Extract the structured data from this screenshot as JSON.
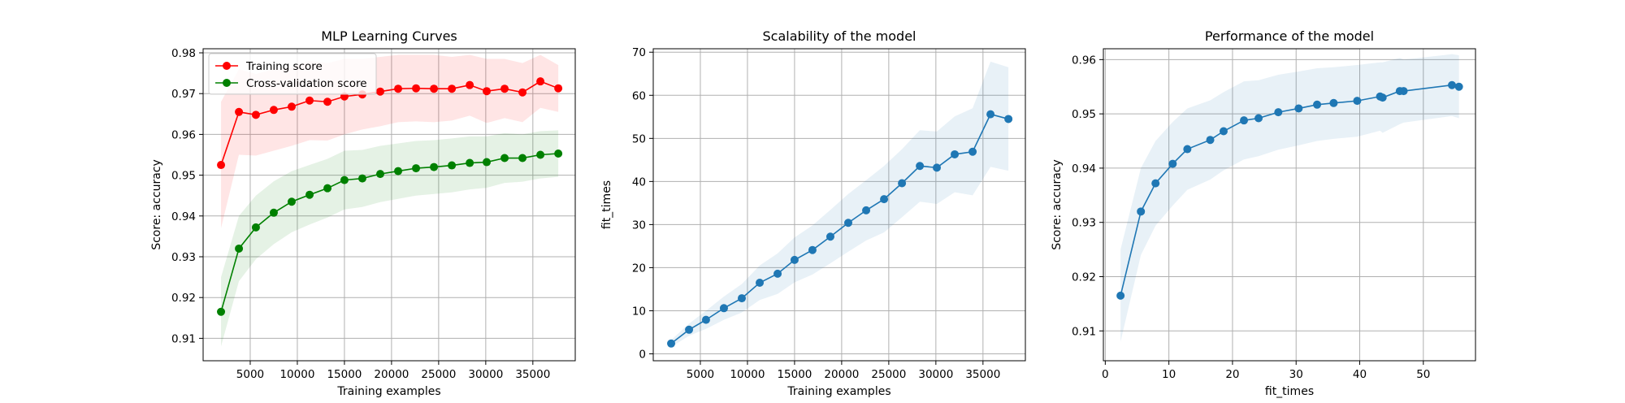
{
  "chart_data": [
    {
      "type": "line",
      "title": "MLP Learning Curves",
      "xlabel": "Training examples",
      "ylabel": "Score: accuracy",
      "xlim": [
        0,
        39500
      ],
      "ylim": [
        0.9045,
        0.981
      ],
      "xticks": [
        5000,
        10000,
        15000,
        20000,
        25000,
        30000,
        35000
      ],
      "yticks": [
        0.91,
        0.92,
        0.93,
        0.94,
        0.95,
        0.96,
        0.97,
        0.98
      ],
      "grid": true,
      "legend": "top-left",
      "x": [
        1900,
        3800,
        5600,
        7500,
        9400,
        11300,
        13200,
        15000,
        16900,
        18800,
        20700,
        22600,
        24500,
        26400,
        28300,
        30100,
        32000,
        33900,
        35800,
        37700
      ],
      "series": [
        {
          "name": "Training score",
          "color": "#ff0000",
          "values": [
            0.9525,
            0.9655,
            0.9648,
            0.966,
            0.9668,
            0.9683,
            0.968,
            0.9693,
            0.9698,
            0.9705,
            0.9712,
            0.9713,
            0.9712,
            0.9712,
            0.9721,
            0.9706,
            0.9712,
            0.9703,
            0.973,
            0.9713
          ],
          "band_upper": [
            0.968,
            0.976,
            0.9748,
            0.976,
            0.9765,
            0.978,
            0.9775,
            0.9785,
            0.9785,
            0.979,
            0.9795,
            0.9795,
            0.9795,
            0.979,
            0.9795,
            0.9785,
            0.9785,
            0.9775,
            0.9795,
            0.977
          ],
          "band_lower": [
            0.937,
            0.955,
            0.9548,
            0.956,
            0.9572,
            0.9586,
            0.9585,
            0.96,
            0.9612,
            0.962,
            0.963,
            0.9632,
            0.963,
            0.9634,
            0.9646,
            0.9628,
            0.964,
            0.963,
            0.9665,
            0.9655
          ]
        },
        {
          "name": "Cross-validation score",
          "color": "#008000",
          "values": [
            0.9165,
            0.932,
            0.9372,
            0.9408,
            0.9435,
            0.9452,
            0.9468,
            0.9488,
            0.9492,
            0.9503,
            0.951,
            0.9517,
            0.952,
            0.9524,
            0.953,
            0.9532,
            0.9542,
            0.9542,
            0.955,
            0.9553
          ],
          "band_upper": [
            0.925,
            0.94,
            0.945,
            0.9485,
            0.951,
            0.9525,
            0.954,
            0.956,
            0.9562,
            0.9572,
            0.9578,
            0.9584,
            0.9586,
            0.959,
            0.9595,
            0.9595,
            0.9603,
            0.96,
            0.9608,
            0.961
          ],
          "band_lower": [
            0.908,
            0.924,
            0.9294,
            0.9331,
            0.936,
            0.9379,
            0.9396,
            0.9416,
            0.9422,
            0.9434,
            0.9442,
            0.945,
            0.9454,
            0.9458,
            0.9465,
            0.9469,
            0.9481,
            0.9484,
            0.9492,
            0.9496
          ]
        }
      ]
    },
    {
      "type": "line",
      "title": "Scalability of the model",
      "xlabel": "Training examples",
      "ylabel": "fit_times",
      "xlim": [
        0,
        39500
      ],
      "ylim": [
        -1.6,
        70.8
      ],
      "xticks": [
        5000,
        10000,
        15000,
        20000,
        25000,
        30000,
        35000
      ],
      "yticks": [
        0,
        10,
        20,
        30,
        40,
        50,
        60,
        70
      ],
      "grid": true,
      "x": [
        1900,
        3800,
        5600,
        7500,
        9400,
        11300,
        13200,
        15000,
        16900,
        18800,
        20700,
        22600,
        24500,
        26400,
        28300,
        30100,
        32000,
        33900,
        35800,
        37700
      ],
      "series": [
        {
          "color": "#1f77b4",
          "values": [
            2.4,
            5.6,
            7.9,
            10.6,
            12.9,
            16.5,
            18.6,
            21.8,
            24.1,
            27.2,
            30.4,
            33.3,
            35.9,
            39.6,
            43.6,
            43.2,
            46.3,
            46.9,
            55.6,
            54.5
          ],
          "band_upper": [
            3.2,
            7.0,
            10.0,
            13.3,
            16.2,
            20.5,
            23.3,
            27.0,
            29.8,
            33.4,
            37.1,
            40.3,
            43.6,
            47.5,
            51.9,
            51.6,
            55.1,
            57.0,
            67.8,
            66.5
          ],
          "band_lower": [
            1.6,
            4.2,
            5.8,
            7.9,
            9.6,
            12.5,
            13.9,
            16.6,
            18.4,
            21.0,
            23.7,
            26.3,
            28.2,
            31.7,
            35.3,
            34.8,
            37.5,
            36.8,
            43.4,
            42.5
          ]
        }
      ]
    },
    {
      "type": "line",
      "title": "Performance of the model",
      "xlabel": "fit_times",
      "ylabel": "Score: accuracy",
      "xlim": [
        -0.3,
        58.2
      ],
      "ylim": [
        0.9045,
        0.962
      ],
      "xticks": [
        0,
        10,
        20,
        30,
        40,
        50
      ],
      "yticks": [
        0.91,
        0.92,
        0.93,
        0.94,
        0.95,
        0.96
      ],
      "grid": true,
      "series": [
        {
          "color": "#1f77b4",
          "x": [
            2.4,
            5.6,
            7.9,
            10.6,
            12.9,
            16.5,
            18.6,
            21.8,
            24.1,
            27.2,
            30.4,
            33.3,
            35.9,
            39.6,
            43.2,
            43.6,
            46.3,
            46.9,
            54.5,
            55.6
          ],
          "values": [
            0.9165,
            0.932,
            0.9372,
            0.9408,
            0.9435,
            0.9452,
            0.9468,
            0.9488,
            0.9492,
            0.9503,
            0.951,
            0.9517,
            0.952,
            0.9524,
            0.9532,
            0.953,
            0.9542,
            0.9542,
            0.9553,
            0.955
          ],
          "band_upper": [
            0.925,
            0.94,
            0.945,
            0.9485,
            0.951,
            0.9525,
            0.954,
            0.956,
            0.9562,
            0.9572,
            0.9578,
            0.9584,
            0.9586,
            0.959,
            0.9595,
            0.9595,
            0.9603,
            0.96,
            0.961,
            0.9608
          ],
          "band_lower": [
            0.908,
            0.924,
            0.9294,
            0.9331,
            0.936,
            0.9379,
            0.9396,
            0.9416,
            0.9422,
            0.9434,
            0.9442,
            0.945,
            0.9454,
            0.9458,
            0.9469,
            0.9465,
            0.9481,
            0.9484,
            0.9496,
            0.9492
          ]
        }
      ]
    }
  ]
}
